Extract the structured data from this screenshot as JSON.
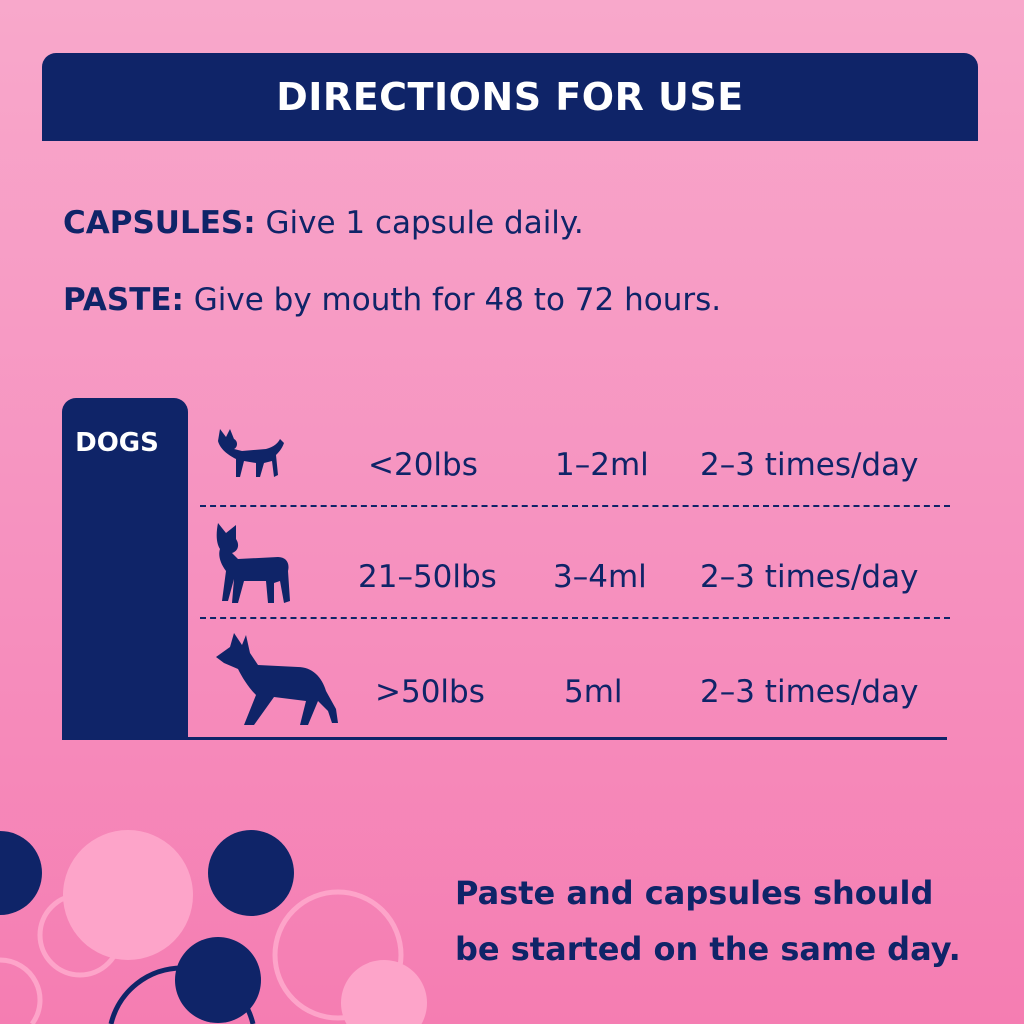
{
  "header": {
    "title": "DIRECTIONS FOR USE"
  },
  "capsules": {
    "label": "CAPSULES:",
    "text": " Give 1 capsule daily."
  },
  "paste": {
    "label": "PASTE:",
    "text": " Give by mouth for 48 to 72 hours."
  },
  "table": {
    "species": "DOGS",
    "rows": [
      {
        "icon": "small-dog-icon",
        "weight": "<20lbs",
        "dose": "1–2ml",
        "frequency": "2–3 times/day"
      },
      {
        "icon": "medium-dog-icon",
        "weight": "21–50lbs",
        "dose": "3–4ml",
        "frequency": "2–3 times/day"
      },
      {
        "icon": "large-dog-icon",
        "weight": ">50lbs",
        "dose": "5ml",
        "frequency": "2–3 times/day"
      }
    ]
  },
  "note": {
    "line1": "Paste and capsules should",
    "line2": "be started on the same day."
  },
  "colors": {
    "navy": "#0f2468",
    "pink": "#f691bf",
    "light_pink": "#fda4c9"
  }
}
